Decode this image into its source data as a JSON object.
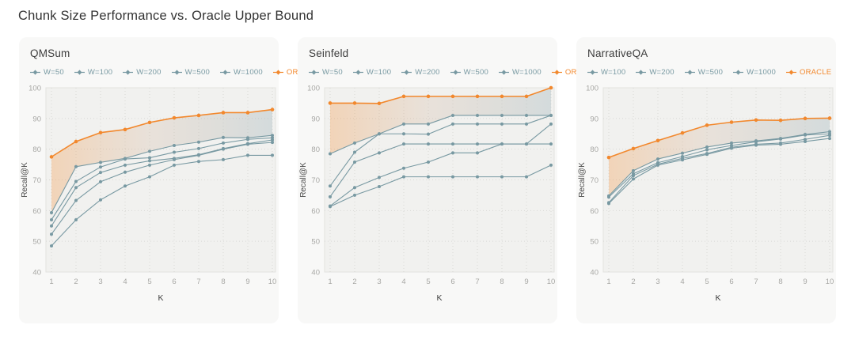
{
  "page_title": "Chunk Size Performance vs. Oracle Upper Bound",
  "colors": {
    "series_teal": "#7899a2",
    "oracle_orange": "#f2882d",
    "panel_bg": "#f8f8f7",
    "plot_bg": "#f1f1ef",
    "plot_border": "#e2e2df",
    "grid": "#d9d9d6",
    "tick_text": "#a7a7a4",
    "axis_label_text": "#4a4a4a",
    "x_label_text": "#3d3d3d",
    "band_left": "rgba(243,145,58,0.30)",
    "band_mid": "rgba(205,175,150,0.24)",
    "band_right": "rgba(150,172,180,0.32)"
  },
  "axis": {
    "xlabel": "K",
    "ylabel": "Recall@K",
    "x_ticks": [
      1,
      2,
      3,
      4,
      5,
      6,
      7,
      8,
      9,
      10
    ],
    "y_ticks": [
      40,
      50,
      60,
      70,
      80,
      90,
      100
    ],
    "ylim": [
      40,
      100
    ],
    "grid": "dotted"
  },
  "chart_data": [
    {
      "type": "line",
      "title": "QMSum",
      "x": [
        1,
        2,
        3,
        4,
        5,
        6,
        7,
        8,
        9,
        10
      ],
      "series": [
        {
          "name": "W=50",
          "values": [
            48.5,
            57.0,
            63.5,
            68.0,
            71.0,
            74.8,
            76.0,
            76.6,
            78.0,
            78.0
          ]
        },
        {
          "name": "W=100",
          "values": [
            52.3,
            63.3,
            69.4,
            72.5,
            74.8,
            76.6,
            78.0,
            80.0,
            81.6,
            82.2
          ]
        },
        {
          "name": "W=200",
          "values": [
            55.0,
            67.5,
            72.4,
            74.8,
            76.2,
            77.0,
            78.2,
            80.2,
            81.8,
            83.0
          ]
        },
        {
          "name": "W=500",
          "values": [
            57.0,
            69.5,
            74.2,
            76.8,
            77.2,
            79.0,
            80.2,
            82.0,
            83.2,
            83.7
          ]
        },
        {
          "name": "W=1000",
          "values": [
            59.3,
            74.3,
            75.7,
            77.0,
            79.3,
            81.2,
            82.3,
            83.8,
            83.7,
            84.5
          ]
        },
        {
          "name": "ORACLE",
          "values": [
            77.5,
            82.5,
            85.4,
            86.4,
            88.7,
            90.2,
            91.0,
            91.9,
            91.9,
            92.9
          ]
        }
      ]
    },
    {
      "type": "line",
      "title": "Seinfeld",
      "x": [
        1,
        2,
        3,
        4,
        5,
        6,
        7,
        8,
        9,
        10
      ],
      "series": [
        {
          "name": "W=50",
          "values": [
            61.3,
            65.0,
            67.8,
            71.0,
            71.0,
            71.0,
            71.0,
            71.0,
            71.0,
            74.8
          ]
        },
        {
          "name": "W=100",
          "values": [
            61.5,
            67.5,
            70.8,
            73.8,
            75.8,
            78.8,
            78.8,
            81.7,
            81.7,
            88.2
          ]
        },
        {
          "name": "W=200",
          "values": [
            64.5,
            75.8,
            78.8,
            81.7,
            81.7,
            81.7,
            81.7,
            81.7,
            81.7,
            81.7
          ]
        },
        {
          "name": "W=500",
          "values": [
            68.0,
            79.0,
            85.0,
            85.0,
            84.9,
            88.2,
            88.2,
            88.2,
            88.2,
            91.0
          ]
        },
        {
          "name": "W=1000",
          "values": [
            78.5,
            82.0,
            85.0,
            88.2,
            88.2,
            91.0,
            91.0,
            91.0,
            91.0,
            91.0
          ]
        },
        {
          "name": "ORACLE",
          "values": [
            95.0,
            95.0,
            94.9,
            97.2,
            97.2,
            97.2,
            97.2,
            97.2,
            97.2,
            100.0
          ]
        }
      ]
    },
    {
      "type": "line",
      "title": "NarrativeQA",
      "x": [
        1,
        2,
        3,
        4,
        5,
        6,
        7,
        8,
        9,
        10
      ],
      "series": [
        {
          "name": "W=100",
          "values": [
            62.3,
            70.3,
            74.8,
            76.5,
            78.3,
            80.3,
            81.3,
            81.6,
            82.5,
            83.5
          ]
        },
        {
          "name": "W=200",
          "values": [
            62.6,
            71.4,
            75.1,
            77.0,
            78.6,
            80.6,
            81.6,
            82.0,
            83.2,
            84.5
          ]
        },
        {
          "name": "W=500",
          "values": [
            64.4,
            72.0,
            75.6,
            77.6,
            79.8,
            81.2,
            82.4,
            83.3,
            84.6,
            85.0
          ]
        },
        {
          "name": "W=1000",
          "values": [
            64.8,
            73.0,
            76.8,
            78.7,
            80.7,
            82.0,
            82.7,
            83.5,
            84.8,
            85.7
          ]
        },
        {
          "name": "ORACLE",
          "values": [
            77.3,
            80.2,
            82.8,
            85.3,
            87.8,
            88.8,
            89.5,
            89.4,
            90.0,
            90.1
          ]
        }
      ]
    }
  ]
}
